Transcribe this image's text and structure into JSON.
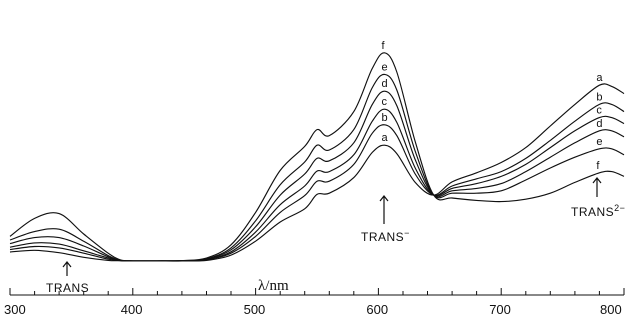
{
  "chart_data": {
    "type": "line",
    "xlabel": "λ/nm",
    "ylabel": "",
    "xlim": [
      300,
      800
    ],
    "ylim": [
      0,
      1
    ],
    "x_ticks": [
      300,
      400,
      500,
      600,
      700,
      800
    ],
    "series_label_positions": {
      "peak_605": [
        "f",
        "e",
        "d",
        "c",
        "b",
        "a"
      ],
      "peak_780": [
        "a",
        "b",
        "c",
        "d",
        "e",
        "f"
      ]
    },
    "annotations": [
      {
        "text": "TRANS",
        "x": 340
      },
      {
        "text": "TRANS",
        "superscript": "−",
        "x": 605
      },
      {
        "text": "TRANS",
        "superscript": "2−",
        "x": 780
      }
    ],
    "series": [
      {
        "name": "a",
        "x": [
          300,
          320,
          340,
          360,
          380,
          390,
          400,
          420,
          440,
          460,
          480,
          500,
          520,
          540,
          550,
          560,
          580,
          595,
          605,
          615,
          630,
          645,
          660,
          680,
          700,
          720,
          740,
          760,
          780,
          790,
          800
        ],
        "y": [
          0.025,
          0.032,
          0.022,
          0.003,
          -0.01,
          -0.011,
          -0.012,
          -0.012,
          -0.012,
          -0.01,
          0.012,
          0.07,
          0.15,
          0.205,
          0.265,
          0.27,
          0.335,
          0.44,
          0.47,
          0.435,
          0.315,
          0.262,
          0.317,
          0.355,
          0.398,
          0.46,
          0.55,
          0.64,
          0.72,
          0.715,
          0.685
        ]
      },
      {
        "name": "b",
        "x": [
          300,
          320,
          340,
          360,
          380,
          390,
          400,
          420,
          440,
          460,
          480,
          500,
          520,
          540,
          550,
          560,
          580,
          595,
          605,
          615,
          630,
          645,
          660,
          680,
          700,
          720,
          740,
          760,
          780,
          790,
          800
        ],
        "y": [
          0.035,
          0.048,
          0.042,
          0.02,
          -0.005,
          -0.011,
          -0.012,
          -0.012,
          -0.012,
          -0.008,
          0.02,
          0.09,
          0.19,
          0.26,
          0.32,
          0.32,
          0.39,
          0.52,
          0.555,
          0.51,
          0.35,
          0.262,
          0.3,
          0.33,
          0.36,
          0.415,
          0.49,
          0.57,
          0.64,
          0.64,
          0.61
        ]
      },
      {
        "name": "c",
        "x": [
          300,
          320,
          340,
          360,
          380,
          390,
          400,
          420,
          440,
          460,
          480,
          500,
          520,
          540,
          550,
          560,
          580,
          595,
          605,
          615,
          630,
          645,
          660,
          680,
          700,
          720,
          740,
          760,
          780,
          790,
          800
        ],
        "y": [
          0.045,
          0.063,
          0.058,
          0.03,
          0.0,
          -0.011,
          -0.012,
          -0.012,
          -0.012,
          -0.007,
          0.026,
          0.108,
          0.222,
          0.3,
          0.362,
          0.36,
          0.43,
          0.57,
          0.62,
          0.565,
          0.375,
          0.262,
          0.29,
          0.31,
          0.34,
          0.39,
          0.46,
          0.53,
          0.585,
          0.585,
          0.56
        ]
      },
      {
        "name": "d",
        "x": [
          300,
          320,
          340,
          360,
          380,
          390,
          400,
          420,
          440,
          460,
          480,
          500,
          520,
          540,
          550,
          560,
          580,
          595,
          605,
          615,
          630,
          645,
          660,
          680,
          700,
          720,
          740,
          760,
          780,
          790,
          800
        ],
        "y": [
          0.06,
          0.085,
          0.085,
          0.05,
          0.005,
          -0.011,
          -0.012,
          -0.012,
          -0.012,
          -0.005,
          0.034,
          0.13,
          0.262,
          0.35,
          0.415,
          0.405,
          0.48,
          0.64,
          0.695,
          0.635,
          0.41,
          0.262,
          0.28,
          0.29,
          0.31,
          0.36,
          0.42,
          0.48,
          0.53,
          0.53,
          0.505
        ]
      },
      {
        "name": "e",
        "x": [
          300,
          320,
          340,
          360,
          380,
          390,
          400,
          420,
          440,
          460,
          480,
          500,
          520,
          540,
          550,
          560,
          580,
          595,
          605,
          615,
          630,
          645,
          660,
          680,
          700,
          720,
          740,
          760,
          780,
          790,
          800
        ],
        "y": [
          0.075,
          0.11,
          0.12,
          0.07,
          0.01,
          -0.01,
          -0.012,
          -0.012,
          -0.011,
          -0.003,
          0.042,
          0.155,
          0.305,
          0.4,
          0.47,
          0.45,
          0.535,
          0.71,
          0.765,
          0.7,
          0.445,
          0.262,
          0.27,
          0.27,
          0.28,
          0.325,
          0.375,
          0.42,
          0.455,
          0.455,
          0.43
        ]
      },
      {
        "name": "f",
        "x": [
          300,
          320,
          340,
          360,
          380,
          390,
          400,
          420,
          440,
          460,
          480,
          500,
          520,
          540,
          550,
          560,
          580,
          595,
          605,
          615,
          630,
          645,
          660,
          680,
          700,
          720,
          740,
          760,
          780,
          790,
          800
        ],
        "y": [
          0.09,
          0.165,
          0.185,
          0.1,
          0.02,
          -0.008,
          -0.012,
          -0.012,
          -0.011,
          0.0,
          0.055,
          0.19,
          0.365,
          0.465,
          0.535,
          0.51,
          0.61,
          0.79,
          0.855,
          0.775,
          0.485,
          0.262,
          0.25,
          0.24,
          0.235,
          0.245,
          0.27,
          0.315,
          0.355,
          0.36,
          0.34
        ]
      }
    ]
  }
}
